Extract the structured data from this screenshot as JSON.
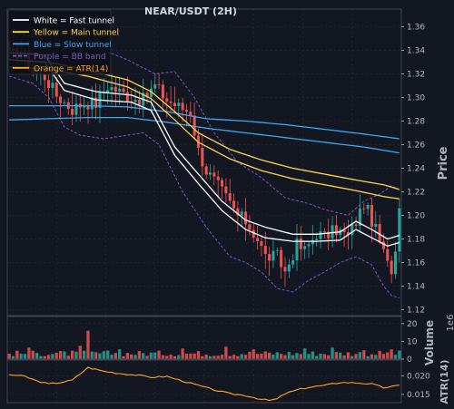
{
  "colors": {
    "background": "#131722",
    "grid": "#2a2e39",
    "axis_text": "#b2b5be",
    "up": "#26a69a",
    "down": "#ef5350",
    "fast": "#ffffff",
    "main": "#ffd54f",
    "slow": "#42a5f5",
    "bb": "#7e57c2",
    "atr": "#ffa726"
  },
  "chart_data": [
    {
      "type": "candlestick",
      "title": "NEAR/USDT (2H)",
      "ylabel": "Price",
      "ylim": [
        1.115,
        1.375
      ],
      "yticks": [
        1.12,
        1.14,
        1.16,
        1.18,
        1.2,
        1.22,
        1.24,
        1.26,
        1.28,
        1.3,
        1.32,
        1.34,
        1.36
      ],
      "grid": true,
      "legend_position": "top-left",
      "legend": [
        {
          "label": "White = Fast tunnel",
          "color": "#ffffff",
          "style": "solid"
        },
        {
          "label": "Yellow = Main tunnel",
          "color": "#ffd54f",
          "style": "solid"
        },
        {
          "label": "Blue = Slow tunnel",
          "color": "#42a5f5",
          "style": "solid"
        },
        {
          "label": "Purple = BB band",
          "color": "#7e57c2",
          "style": "dashed"
        },
        {
          "label": "Orange = ATR(14)",
          "color": "#ffa726",
          "style": "solid"
        }
      ],
      "n_bars": 100,
      "close_keys": [
        [
          0,
          1.335
        ],
        [
          3,
          1.34
        ],
        [
          6,
          1.322
        ],
        [
          9,
          1.318
        ],
        [
          12,
          1.302
        ],
        [
          16,
          1.29
        ],
        [
          19,
          1.296
        ],
        [
          22,
          1.295
        ],
        [
          25,
          1.31
        ],
        [
          28,
          1.305
        ],
        [
          31,
          1.3
        ],
        [
          34,
          1.298
        ],
        [
          37,
          1.31
        ],
        [
          40,
          1.298
        ],
        [
          43,
          1.292
        ],
        [
          46,
          1.288
        ],
        [
          48,
          1.255
        ],
        [
          50,
          1.238
        ],
        [
          53,
          1.225
        ],
        [
          55,
          1.215
        ],
        [
          58,
          1.2
        ],
        [
          60,
          1.195
        ],
        [
          63,
          1.18
        ],
        [
          65,
          1.165
        ],
        [
          68,
          1.165
        ],
        [
          70,
          1.152
        ],
        [
          73,
          1.175
        ],
        [
          75,
          1.17
        ],
        [
          78,
          1.185
        ],
        [
          80,
          1.182
        ],
        [
          83,
          1.188
        ],
        [
          86,
          1.182
        ],
        [
          88,
          1.195
        ],
        [
          90,
          1.21
        ],
        [
          92,
          1.196
        ],
        [
          94,
          1.178
        ],
        [
          96,
          1.158
        ],
        [
          97,
          1.155
        ],
        [
          98,
          1.17
        ],
        [
          99,
          1.212
        ]
      ],
      "fast_upper": [
        [
          0,
          1.338
        ],
        [
          9,
          1.336
        ],
        [
          14,
          1.312
        ],
        [
          22,
          1.305
        ],
        [
          31,
          1.302
        ],
        [
          36,
          1.296
        ],
        [
          42,
          1.258
        ],
        [
          48,
          1.235
        ],
        [
          54,
          1.212
        ],
        [
          60,
          1.196
        ],
        [
          65,
          1.19
        ],
        [
          72,
          1.184
        ],
        [
          78,
          1.184
        ],
        [
          84,
          1.186
        ],
        [
          88,
          1.195
        ],
        [
          92,
          1.188
        ],
        [
          96,
          1.18
        ],
        [
          99,
          1.183
        ]
      ],
      "fast_lower": [
        [
          0,
          1.332
        ],
        [
          9,
          1.33
        ],
        [
          14,
          1.306
        ],
        [
          22,
          1.298
        ],
        [
          31,
          1.296
        ],
        [
          36,
          1.289
        ],
        [
          42,
          1.251
        ],
        [
          48,
          1.227
        ],
        [
          54,
          1.204
        ],
        [
          60,
          1.188
        ],
        [
          65,
          1.181
        ],
        [
          72,
          1.178
        ],
        [
          78,
          1.178
        ],
        [
          84,
          1.179
        ],
        [
          88,
          1.188
        ],
        [
          92,
          1.181
        ],
        [
          96,
          1.174
        ],
        [
          99,
          1.177
        ]
      ],
      "main_upper": [
        [
          0,
          1.332
        ],
        [
          10,
          1.33
        ],
        [
          20,
          1.323
        ],
        [
          30,
          1.315
        ],
        [
          36,
          1.305
        ],
        [
          42,
          1.288
        ],
        [
          48,
          1.27
        ],
        [
          56,
          1.256
        ],
        [
          64,
          1.247
        ],
        [
          72,
          1.24
        ],
        [
          80,
          1.235
        ],
        [
          88,
          1.23
        ],
        [
          95,
          1.226
        ],
        [
          99,
          1.222
        ]
      ],
      "main_lower": [
        [
          0,
          1.326
        ],
        [
          10,
          1.324
        ],
        [
          20,
          1.318
        ],
        [
          30,
          1.309
        ],
        [
          36,
          1.299
        ],
        [
          42,
          1.281
        ],
        [
          48,
          1.262
        ],
        [
          56,
          1.248
        ],
        [
          64,
          1.238
        ],
        [
          72,
          1.231
        ],
        [
          80,
          1.226
        ],
        [
          88,
          1.221
        ],
        [
          95,
          1.216
        ],
        [
          99,
          1.214
        ]
      ],
      "slow_upper": [
        [
          0,
          1.293
        ],
        [
          20,
          1.293
        ],
        [
          30,
          1.292
        ],
        [
          40,
          1.288
        ],
        [
          50,
          1.282
        ],
        [
          60,
          1.28
        ],
        [
          70,
          1.277
        ],
        [
          80,
          1.273
        ],
        [
          90,
          1.269
        ],
        [
          99,
          1.265
        ]
      ],
      "slow_lower": [
        [
          0,
          1.281
        ],
        [
          20,
          1.283
        ],
        [
          30,
          1.283
        ],
        [
          40,
          1.279
        ],
        [
          50,
          1.274
        ],
        [
          60,
          1.27
        ],
        [
          70,
          1.266
        ],
        [
          80,
          1.262
        ],
        [
          90,
          1.258
        ],
        [
          99,
          1.253
        ]
      ],
      "bb_upper": [
        [
          0,
          1.356
        ],
        [
          8,
          1.35
        ],
        [
          13,
          1.345
        ],
        [
          18,
          1.355
        ],
        [
          24,
          1.34
        ],
        [
          30,
          1.332
        ],
        [
          37,
          1.32
        ],
        [
          42,
          1.322
        ],
        [
          47,
          1.3
        ],
        [
          52,
          1.27
        ],
        [
          58,
          1.245
        ],
        [
          64,
          1.232
        ],
        [
          70,
          1.215
        ],
        [
          76,
          1.21
        ],
        [
          80,
          1.205
        ],
        [
          86,
          1.2
        ],
        [
          90,
          1.212
        ],
        [
          94,
          1.218
        ],
        [
          97,
          1.225
        ],
        [
          99,
          1.222
        ]
      ],
      "bb_lower": [
        [
          0,
          1.318
        ],
        [
          6,
          1.312
        ],
        [
          10,
          1.3
        ],
        [
          14,
          1.275
        ],
        [
          18,
          1.268
        ],
        [
          24,
          1.265
        ],
        [
          30,
          1.268
        ],
        [
          34,
          1.27
        ],
        [
          38,
          1.26
        ],
        [
          44,
          1.22
        ],
        [
          50,
          1.19
        ],
        [
          56,
          1.165
        ],
        [
          60,
          1.16
        ],
        [
          64,
          1.152
        ],
        [
          68,
          1.138
        ],
        [
          72,
          1.135
        ],
        [
          76,
          1.145
        ],
        [
          80,
          1.152
        ],
        [
          84,
          1.16
        ],
        [
          88,
          1.165
        ],
        [
          92,
          1.158
        ],
        [
          95,
          1.14
        ],
        [
          97,
          1.132
        ],
        [
          99,
          1.13
        ]
      ]
    },
    {
      "type": "bar",
      "ylabel": "Volume",
      "exponent_label": "1e6",
      "ylim": [
        0,
        24
      ],
      "yticks": [
        0,
        10,
        20
      ],
      "typical": 3.5,
      "spikes": [
        [
          5,
          6.5
        ],
        [
          18,
          7.5
        ],
        [
          20,
          16
        ],
        [
          28,
          5.5
        ],
        [
          44,
          6
        ],
        [
          55,
          7
        ],
        [
          62,
          5.5
        ],
        [
          75,
          6
        ],
        [
          82,
          6.5
        ],
        [
          90,
          5
        ],
        [
          97,
          5.5
        ]
      ]
    },
    {
      "type": "line",
      "ylabel": "ATR(14)",
      "ylim": [
        0.0128,
        0.0242
      ],
      "yticks": [
        0.015,
        0.02
      ],
      "values_keys": [
        [
          0,
          0.0203
        ],
        [
          4,
          0.0198
        ],
        [
          7,
          0.0186
        ],
        [
          10,
          0.0178
        ],
        [
          13,
          0.0182
        ],
        [
          16,
          0.0188
        ],
        [
          20,
          0.0222
        ],
        [
          24,
          0.0212
        ],
        [
          28,
          0.0206
        ],
        [
          32,
          0.0202
        ],
        [
          36,
          0.0196
        ],
        [
          40,
          0.0198
        ],
        [
          44,
          0.0186
        ],
        [
          48,
          0.0174
        ],
        [
          52,
          0.0162
        ],
        [
          56,
          0.0152
        ],
        [
          60,
          0.0147
        ],
        [
          64,
          0.0137
        ],
        [
          66,
          0.0134
        ],
        [
          68,
          0.0138
        ],
        [
          70,
          0.0152
        ],
        [
          73,
          0.0162
        ],
        [
          76,
          0.0169
        ],
        [
          80,
          0.0174
        ],
        [
          84,
          0.0182
        ],
        [
          88,
          0.0181
        ],
        [
          92,
          0.0178
        ],
        [
          95,
          0.0168
        ],
        [
          98,
          0.0172
        ],
        [
          99,
          0.0174
        ]
      ]
    }
  ]
}
